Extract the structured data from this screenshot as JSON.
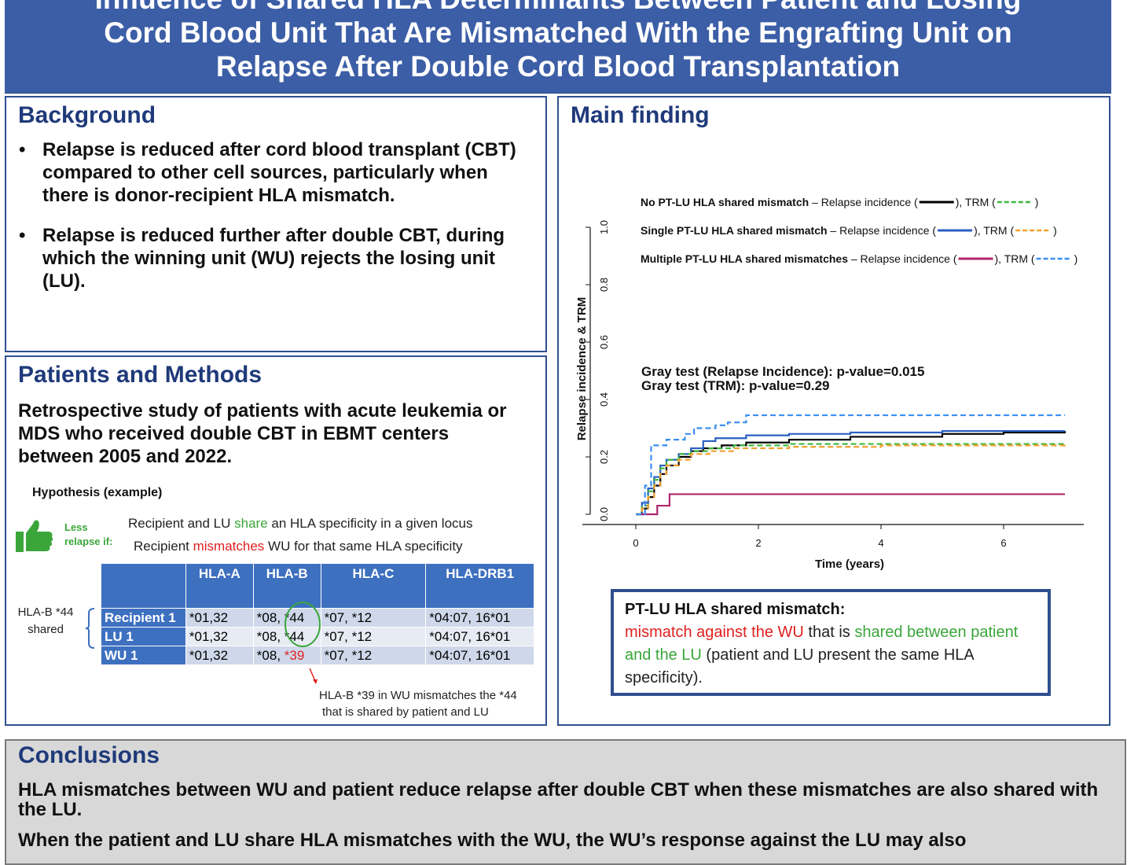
{
  "header": {
    "title_line1": "Influence of Shared HLA Determinants Between Patient and Losing",
    "title_line2": "Cord Blood Unit That Are Mismatched With the Engrafting Unit on",
    "title_line3": "Relapse After Double Cord Blood Transplantation"
  },
  "background": {
    "title": "Background",
    "bullets": [
      "Relapse is reduced after cord blood transplant (CBT) compared to other cell sources, particularly when there is donor-recipient HLA mismatch.",
      "Relapse is reduced further after double CBT, during which the winning unit (WU) rejects the losing unit (LU)."
    ]
  },
  "methods": {
    "title": "Patients and Methods",
    "text": "Retrospective study of patients with acute leukemia or MDS who received double CBT in EBMT centers between 2005 and 2022.",
    "hypothesis_label": "Hypothesis (example)",
    "less_relapse": "Less relapse if:",
    "hyp1": {
      "pre": "Recipient and LU ",
      "hl": "share",
      "post": " an HLA specificity in a given locus"
    },
    "hyp2": {
      "pre": "Recipient ",
      "hl": "mismatches",
      "post": " WU for that same HLA specificity"
    },
    "side_label": "HLA-B *44 shared",
    "table": {
      "headers": [
        "",
        "HLA-A",
        "HLA-B",
        "HLA-C",
        "HLA-DRB1"
      ],
      "rows": [
        {
          "label": "Recipient 1",
          "a": "*01,32",
          "b1": "*08, ",
          "b2": "*44",
          "c": "*07, *12",
          "drb1": "*04:07, 16*01"
        },
        {
          "label": "LU 1",
          "a": "*01,32",
          "b1": "*08, ",
          "b2": "*44",
          "c": "*07, *12",
          "drb1": "*04:07, 16*01"
        },
        {
          "label": "WU 1",
          "a": "*01,32",
          "b1": "*08, ",
          "b2": "*39",
          "c": "*07, *12",
          "drb1": "*04:07, 16*01"
        }
      ]
    },
    "note_line1": "HLA-B *39 in WU mismatches the *44",
    "note_line2": "that is shared by patient and LU"
  },
  "finding": {
    "title": "Main finding",
    "box_title": "PT-LU HLA shared mismatch:",
    "box_red": "mismatch against the WU",
    "box_mid": " that is ",
    "box_green": "shared between patient and the LU",
    "box_end": " (patient and LU present the same HLA specificity)."
  },
  "conclusions": {
    "title": "Conclusions",
    "p1": "HLA mismatches between WU and patient reduce relapse after double CBT when these mismatches are also shared with the LU.",
    "p2": "When the patient and LU share HLA mismatches with the WU, the WU’s response against the LU may also"
  },
  "colors": {
    "header_bg": "#3c5ea6",
    "panel_border": "#2f4f8f",
    "title_blue": "#1f3a7a",
    "green": "#3aa63a",
    "red": "#e02020",
    "black_series": "#000000",
    "blue_series": "#2a5fc0",
    "magenta_series": "#b0246a",
    "green_dash": "#3cb83c",
    "orange_dash": "#f0a030",
    "lightblue_dash": "#3a8ef0"
  },
  "chart_data": {
    "type": "line",
    "xlabel": "Time (years)",
    "ylabel": "Relapse incidence & TRM",
    "xlim": [
      0,
      7.5
    ],
    "ylim": [
      0,
      1.0
    ],
    "xticks": [
      0,
      2,
      4,
      6
    ],
    "yticks": [
      "0.0",
      "0.2",
      "0.4",
      "0.6",
      "0.8",
      "1.0"
    ],
    "legend": [
      {
        "group": "No PT-LU HLA shared mismatch",
        "ri": "Relapse incidence (",
        "trm": "), TRM (",
        "end": ")"
      },
      {
        "group": "Single PT-LU HLA shared mismatch",
        "ri": "Relapse incidence (",
        "trm": "), TRM (",
        "end": ")"
      },
      {
        "group": "Multiple PT-LU HLA shared mismatches",
        "ri": "Relapse incidence (",
        "trm": "), TRM (",
        "end": ")"
      }
    ],
    "annotation_line1": "Gray test (Relapse Incidence): p-value=0.015",
    "annotation_line2": "Gray test (TRM): p-value=0.29",
    "series": [
      {
        "group": "No PT-LU HLA shared mismatch",
        "measure": "Relapse incidence",
        "color": "#000000",
        "dash": false,
        "points": [
          [
            0,
            0
          ],
          [
            0.1,
            0.02
          ],
          [
            0.2,
            0.06
          ],
          [
            0.3,
            0.1
          ],
          [
            0.4,
            0.14
          ],
          [
            0.5,
            0.17
          ],
          [
            0.7,
            0.2
          ],
          [
            0.9,
            0.22
          ],
          [
            1.1,
            0.23
          ],
          [
            1.4,
            0.24
          ],
          [
            1.8,
            0.25
          ],
          [
            2.5,
            0.26
          ],
          [
            3.5,
            0.27
          ],
          [
            5,
            0.28
          ],
          [
            6,
            0.285
          ],
          [
            7,
            0.29
          ]
        ]
      },
      {
        "group": "Single PT-LU HLA shared mismatch",
        "measure": "Relapse incidence",
        "color": "#2a5fc0",
        "dash": false,
        "points": [
          [
            0,
            0
          ],
          [
            0.1,
            0.04
          ],
          [
            0.2,
            0.09
          ],
          [
            0.3,
            0.13
          ],
          [
            0.4,
            0.17
          ],
          [
            0.5,
            0.19
          ],
          [
            0.7,
            0.21
          ],
          [
            0.9,
            0.23
          ],
          [
            1.1,
            0.255
          ],
          [
            1.3,
            0.265
          ],
          [
            1.8,
            0.275
          ],
          [
            2.5,
            0.28
          ],
          [
            3.5,
            0.285
          ],
          [
            5,
            0.29
          ],
          [
            7,
            0.29
          ]
        ]
      },
      {
        "group": "Multiple PT-LU HLA shared mismatches",
        "measure": "Relapse incidence",
        "color": "#b0246a",
        "dash": false,
        "points": [
          [
            0,
            0
          ],
          [
            0.3,
            0
          ],
          [
            0.35,
            0.03
          ],
          [
            0.5,
            0.03
          ],
          [
            0.55,
            0.07
          ],
          [
            7,
            0.07
          ]
        ]
      },
      {
        "group": "No PT-LU HLA shared mismatch",
        "measure": "TRM",
        "color": "#3cb83c",
        "dash": true,
        "points": [
          [
            0,
            0
          ],
          [
            0.1,
            0.03
          ],
          [
            0.2,
            0.08
          ],
          [
            0.3,
            0.12
          ],
          [
            0.4,
            0.16
          ],
          [
            0.5,
            0.19
          ],
          [
            0.7,
            0.21
          ],
          [
            0.9,
            0.22
          ],
          [
            1.2,
            0.23
          ],
          [
            1.6,
            0.24
          ],
          [
            2.5,
            0.245
          ],
          [
            7,
            0.25
          ]
        ]
      },
      {
        "group": "Single PT-LU HLA shared mismatch",
        "measure": "TRM",
        "color": "#f0a030",
        "dash": true,
        "points": [
          [
            0,
            0
          ],
          [
            0.1,
            0.02
          ],
          [
            0.2,
            0.06
          ],
          [
            0.3,
            0.1
          ],
          [
            0.4,
            0.14
          ],
          [
            0.5,
            0.17
          ],
          [
            0.7,
            0.19
          ],
          [
            0.9,
            0.21
          ],
          [
            1.2,
            0.22
          ],
          [
            1.6,
            0.23
          ],
          [
            2.5,
            0.235
          ],
          [
            4,
            0.24
          ],
          [
            7,
            0.245
          ]
        ]
      },
      {
        "group": "Multiple PT-LU HLA shared mismatches",
        "measure": "TRM",
        "color": "#3a8ef0",
        "dash": true,
        "points": [
          [
            0,
            0
          ],
          [
            0.15,
            0.1
          ],
          [
            0.25,
            0.24
          ],
          [
            0.35,
            0.24
          ],
          [
            0.5,
            0.26
          ],
          [
            0.8,
            0.28
          ],
          [
            0.95,
            0.3
          ],
          [
            1.3,
            0.31
          ],
          [
            1.5,
            0.32
          ],
          [
            1.8,
            0.345
          ],
          [
            7,
            0.345
          ]
        ]
      }
    ]
  }
}
